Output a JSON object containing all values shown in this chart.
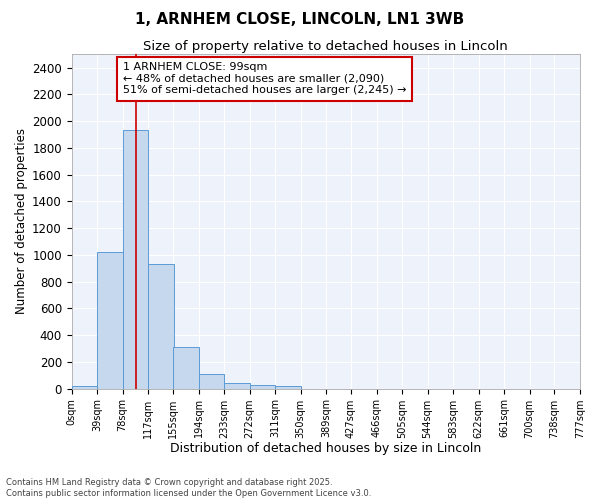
{
  "title_line1": "1, ARNHEM CLOSE, LINCOLN, LN1 3WB",
  "title_line2": "Size of property relative to detached houses in Lincoln",
  "xlabel": "Distribution of detached houses by size in Lincoln",
  "ylabel": "Number of detached properties",
  "bin_edges": [
    0,
    39,
    78,
    117,
    155,
    194,
    233,
    272,
    311,
    350,
    389,
    427,
    466,
    505,
    544,
    583,
    622,
    661,
    700,
    738,
    777
  ],
  "bar_heights": [
    20,
    1020,
    1930,
    930,
    310,
    110,
    45,
    25,
    20,
    0,
    0,
    0,
    0,
    0,
    0,
    0,
    0,
    0,
    0,
    0
  ],
  "bar_color": "#c5d8ee",
  "bar_edge_color": "#5b9bd5",
  "red_line_x": 99,
  "red_line_color": "#cc0000",
  "annotation_text": "1 ARNHEM CLOSE: 99sqm\n← 48% of detached houses are smaller (2,090)\n51% of semi-detached houses are larger (2,245) →",
  "annotation_box_color": "#ffffff",
  "annotation_box_edge": "#cc0000",
  "ylim": [
    0,
    2500
  ],
  "yticks": [
    0,
    200,
    400,
    600,
    800,
    1000,
    1200,
    1400,
    1600,
    1800,
    2000,
    2200,
    2400
  ],
  "bg_color": "#ffffff",
  "plot_bg_color": "#eef2fb",
  "grid_color": "#ffffff",
  "footer_line1": "Contains HM Land Registry data © Crown copyright and database right 2025.",
  "footer_line2": "Contains public sector information licensed under the Open Government Licence v3.0."
}
